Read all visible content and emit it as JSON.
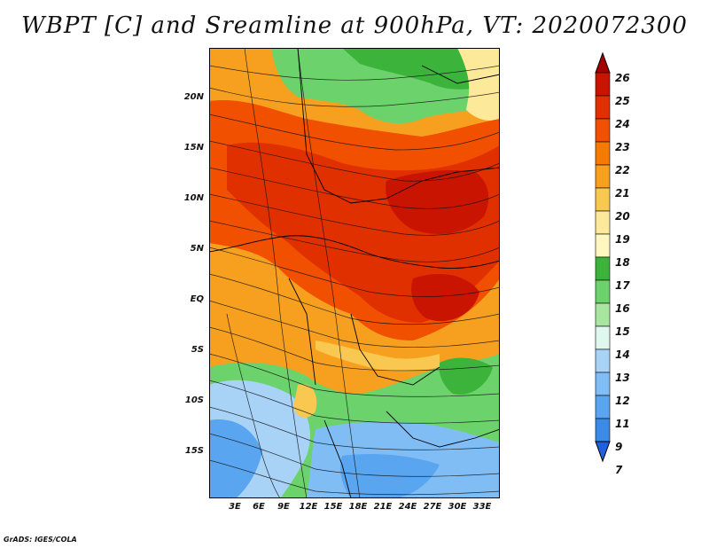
{
  "title": "WBPT [C] and Sreamline at 900hPa, VT: 2020072300",
  "credit": "GrADS: IGES/COLA",
  "map": {
    "lat_labels": [
      "20N",
      "15N",
      "10N",
      "5N",
      "EQ",
      "5S",
      "10S",
      "15S"
    ],
    "lon_labels": [
      "3E",
      "6E",
      "9E",
      "12E",
      "15E",
      "18E",
      "21E",
      "24E",
      "27E",
      "30E",
      "33E"
    ]
  },
  "colorbar": {
    "labels": [
      "26",
      "25",
      "24",
      "23",
      "22",
      "21",
      "20",
      "19",
      "18",
      "17",
      "16",
      "15",
      "14",
      "13",
      "12",
      "11",
      "9",
      "7"
    ],
    "colors": [
      "#a50000",
      "#c81400",
      "#e03000",
      "#f05000",
      "#f57a00",
      "#f7a020",
      "#f9c850",
      "#fde99a",
      "#fff7c0",
      "#3cb43c",
      "#6cd26c",
      "#a8e6a0",
      "#e0f7f0",
      "#a8d3f7",
      "#80bdf5",
      "#5aa5f0",
      "#3a8ae6",
      "#2060dc"
    ]
  }
}
